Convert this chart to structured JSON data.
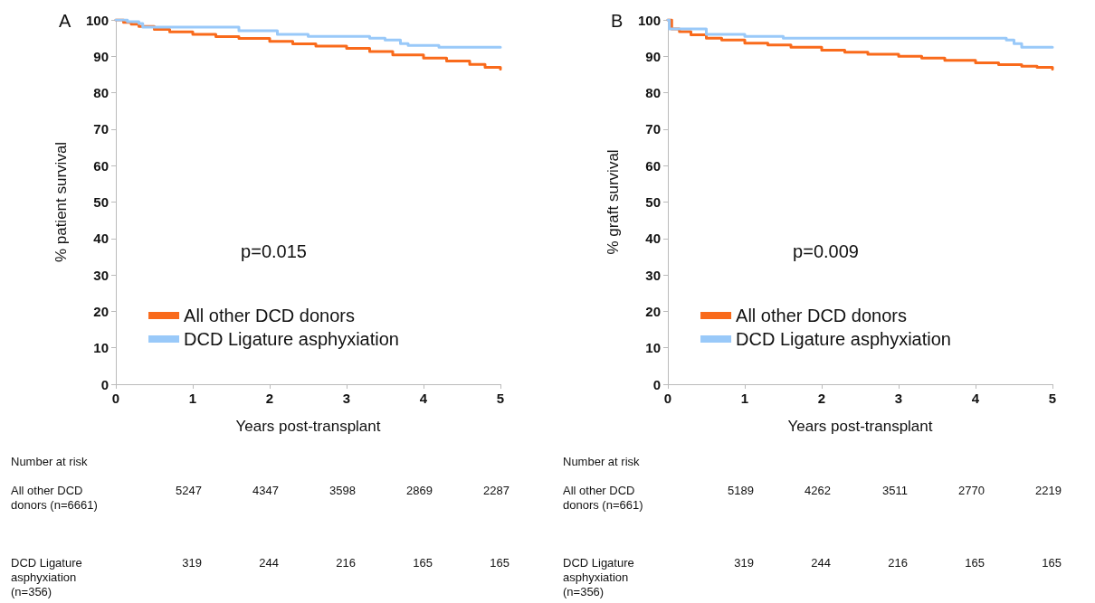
{
  "chart_data": [
    {
      "type": "step",
      "title": "A",
      "xlabel": "Years post-transplant",
      "ylabel": "% patient survival",
      "xlim": [
        0,
        5
      ],
      "xticks": [
        0,
        1,
        2,
        3,
        4,
        5
      ],
      "ylim": [
        0,
        100
      ],
      "yticks": [
        0,
        10,
        20,
        30,
        40,
        50,
        60,
        70,
        80,
        90,
        100
      ],
      "grid": false,
      "legend": "bottom",
      "line_style": "solid",
      "marker": "none",
      "series": [
        {
          "name": "All other DCD donors",
          "color": "#f96a1b",
          "x": [
            0,
            0.1,
            0.2,
            0.3,
            0.5,
            0.7,
            1,
            1.3,
            1.6,
            2,
            2.3,
            2.6,
            3,
            3.3,
            3.6,
            4,
            4.3,
            4.6,
            4.8,
            5
          ],
          "values": [
            100,
            99.3,
            98.8,
            98.2,
            97.4,
            96.7,
            96,
            95.4,
            94.9,
            94.1,
            93.4,
            92.8,
            92.2,
            91.3,
            90.4,
            89.5,
            88.7,
            87.8,
            87,
            86.5
          ]
        },
        {
          "name": "DCD Ligature asphyxiation",
          "color": "#99c9f9",
          "x": [
            0,
            0.15,
            0.3,
            0.35,
            1.5,
            1.6,
            2,
            2.1,
            2.5,
            3.2,
            3.3,
            3.5,
            3.7,
            3.8,
            4.2,
            5
          ],
          "values": [
            100,
            99.5,
            99,
            98,
            98,
            97,
            97,
            96,
            95.5,
            95.5,
            95,
            94.5,
            93.5,
            93,
            92.5,
            92.5
          ]
        }
      ],
      "annotations": [
        "p=0.015",
        "Number at risk",
        "All other DCD donors (n=6661)",
        "5247",
        "4347",
        "3598",
        "2869",
        "2287",
        "DCD Ligature asphyxiation (n=356)",
        "319",
        "244",
        "216",
        "165",
        "165"
      ]
    },
    {
      "type": "step",
      "title": "B",
      "xlabel": "Years post-transplant",
      "ylabel": "% graft survival",
      "xlim": [
        0,
        5
      ],
      "xticks": [
        0,
        1,
        2,
        3,
        4,
        5
      ],
      "ylim": [
        0,
        100
      ],
      "yticks": [
        0,
        10,
        20,
        30,
        40,
        50,
        60,
        70,
        80,
        90,
        100
      ],
      "grid": false,
      "legend": "bottom",
      "line_style": "solid",
      "marker": "none",
      "series": [
        {
          "name": "All other DCD donors",
          "color": "#f96a1b",
          "x": [
            0,
            0.05,
            0.15,
            0.3,
            0.5,
            0.7,
            1,
            1.3,
            1.6,
            2,
            2.3,
            2.6,
            3,
            3.3,
            3.6,
            4,
            4.3,
            4.6,
            4.8,
            5
          ],
          "values": [
            100,
            97.5,
            96.8,
            95.9,
            95,
            94.5,
            93.6,
            93.1,
            92.5,
            91.7,
            91.1,
            90.6,
            90,
            89.5,
            88.9,
            88.2,
            87.7,
            87.3,
            87,
            86.5
          ]
        },
        {
          "name": "DCD Ligature asphyxiation",
          "color": "#99c9f9",
          "x": [
            0,
            0.02,
            0.45,
            0.5,
            1,
            1.5,
            3.5,
            4.4,
            4.5,
            4.6,
            5
          ],
          "values": [
            100,
            97.5,
            97.5,
            96,
            95.5,
            95,
            95,
            94.5,
            93.5,
            92.5,
            92.5
          ]
        }
      ],
      "annotations": [
        "p=0.009",
        "Number at risk",
        "All other DCD donors (n=661)",
        "5189",
        "4262",
        "3511",
        "2770",
        "2219",
        "DCD Ligature asphyxiation (n=356)",
        "319",
        "244",
        "216",
        "165",
        "165"
      ]
    }
  ]
}
